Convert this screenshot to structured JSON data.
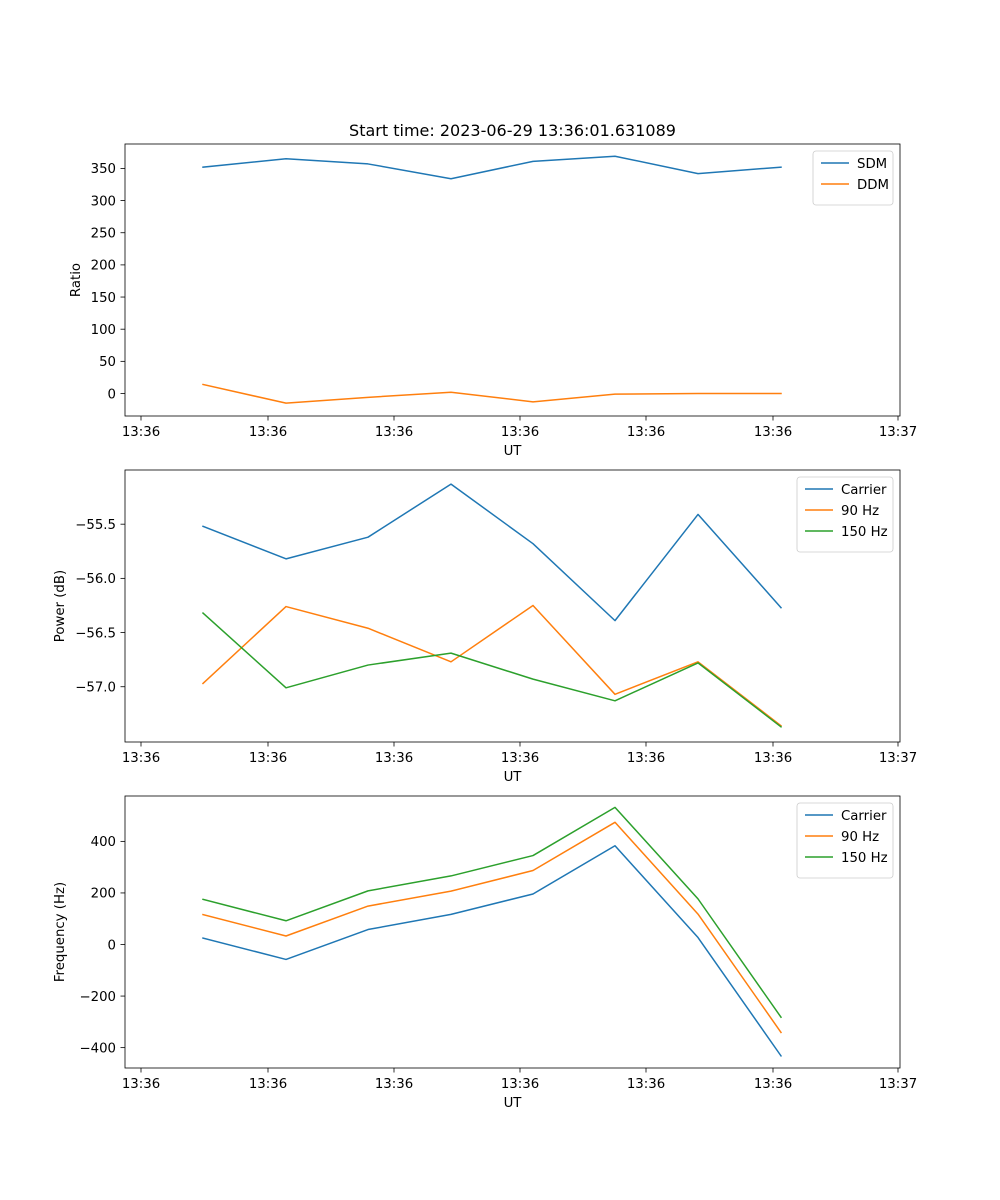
{
  "figure": {
    "title": "Start time: 2023-06-29 13:36:01.631089"
  },
  "chart_data": [
    {
      "type": "line",
      "title": "Start time: 2023-06-29 13:36:01.631089",
      "xlabel": "UT",
      "ylabel": "Ratio",
      "x_tick_labels": [
        "13:36",
        "13:36",
        "13:36",
        "13:36",
        "13:36",
        "13:36",
        "13:37"
      ],
      "y_ticks": [
        0,
        50,
        100,
        150,
        200,
        250,
        300,
        350
      ],
      "ylim": [
        -35,
        388
      ],
      "legend_position": "top-right",
      "series": [
        {
          "name": "SDM",
          "color": "#1f77b4",
          "values": [
            352,
            365,
            357,
            334,
            361,
            369,
            342,
            352
          ]
        },
        {
          "name": "DDM",
          "color": "#ff7f0e",
          "values": [
            14,
            -15,
            -6,
            2,
            -13,
            -1,
            0,
            0
          ]
        }
      ]
    },
    {
      "type": "line",
      "title": "",
      "xlabel": "UT",
      "ylabel": "Power (dB)",
      "x_tick_labels": [
        "13:36",
        "13:36",
        "13:36",
        "13:36",
        "13:36",
        "13:36",
        "13:37"
      ],
      "y_ticks": [
        -57.0,
        -56.5,
        -56.0,
        -55.5
      ],
      "y_tick_labels": [
        "−57.0",
        "−56.5",
        "−56.0",
        "−55.5"
      ],
      "ylim": [
        -57.51,
        -55.0
      ],
      "legend_position": "top-right",
      "series": [
        {
          "name": "Carrier",
          "color": "#1f77b4",
          "values": [
            -55.52,
            -55.82,
            -55.62,
            -55.13,
            -55.68,
            -56.39,
            -55.41,
            -56.27
          ]
        },
        {
          "name": "90 Hz",
          "color": "#ff7f0e",
          "values": [
            -56.97,
            -56.26,
            -56.46,
            -56.77,
            -56.25,
            -57.07,
            -56.77,
            -57.36
          ]
        },
        {
          "name": "150 Hz",
          "color": "#2ca02c",
          "values": [
            -56.32,
            -57.01,
            -56.8,
            -56.69,
            -56.93,
            -57.13,
            -56.78,
            -57.37
          ]
        }
      ]
    },
    {
      "type": "line",
      "title": "",
      "xlabel": "UT",
      "ylabel": "Frequency (Hz)",
      "x_tick_labels": [
        "13:36",
        "13:36",
        "13:36",
        "13:36",
        "13:36",
        "13:36",
        "13:37"
      ],
      "y_ticks": [
        -400,
        -200,
        0,
        200,
        400
      ],
      "y_tick_labels": [
        "−400",
        "−200",
        "0",
        "200",
        "400"
      ],
      "ylim": [
        -479,
        576
      ],
      "legend_position": "top-right",
      "series": [
        {
          "name": "Carrier",
          "color": "#1f77b4",
          "values": [
            25,
            -58,
            58,
            117,
            196,
            383,
            27,
            -432
          ]
        },
        {
          "name": "90 Hz",
          "color": "#ff7f0e",
          "values": [
            116,
            33,
            149,
            207,
            287,
            474,
            118,
            -341
          ]
        },
        {
          "name": "150 Hz",
          "color": "#2ca02c",
          "values": [
            175,
            92,
            208,
            266,
            345,
            532,
            177,
            -282
          ]
        }
      ]
    }
  ]
}
